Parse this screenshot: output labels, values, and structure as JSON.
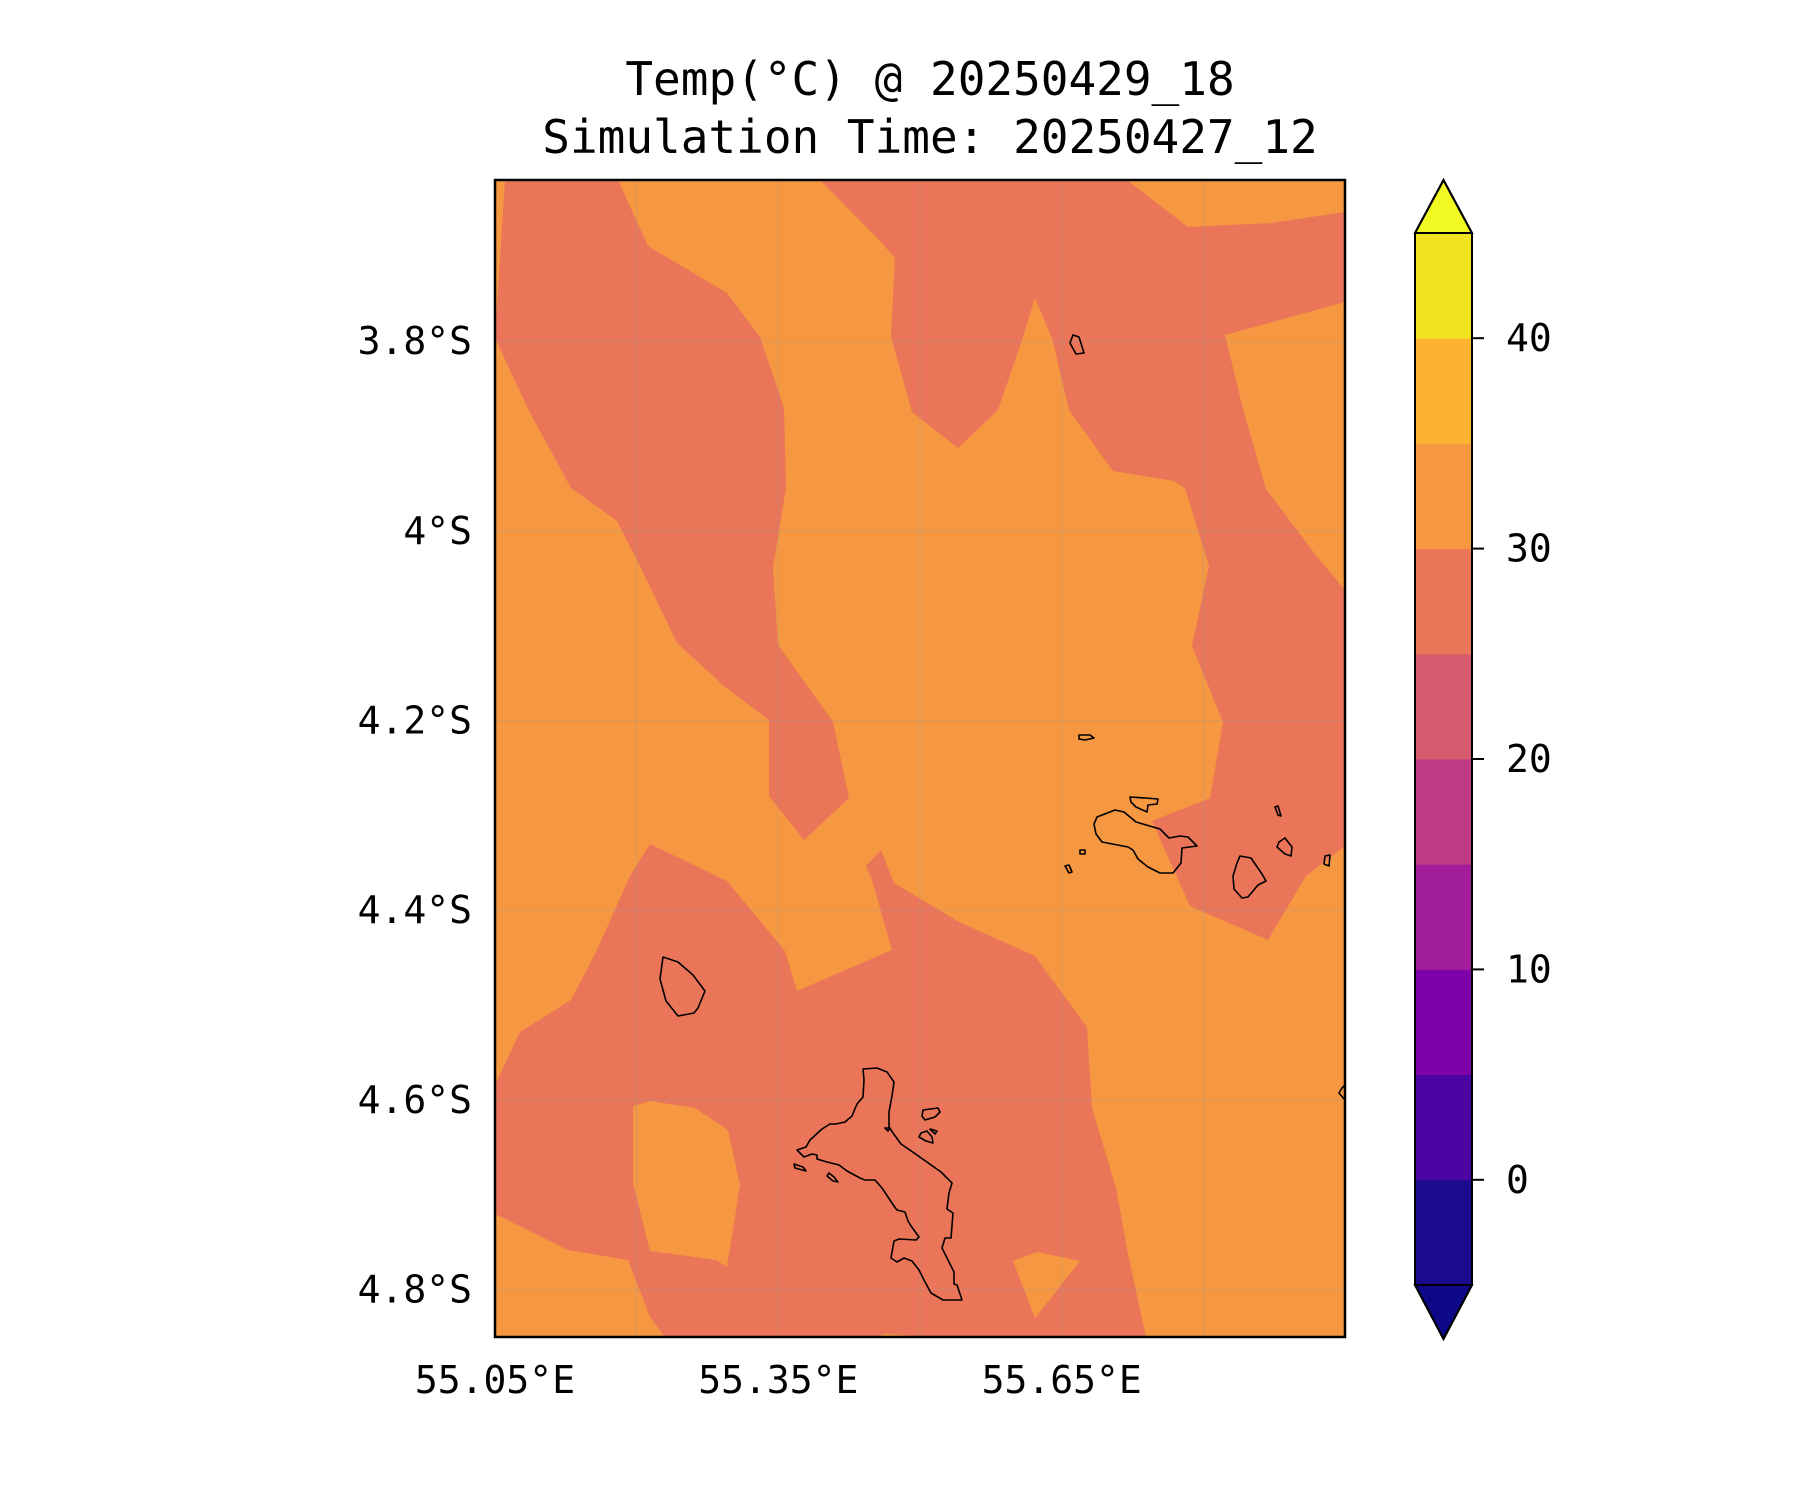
{
  "title": {
    "line1": "Temp(°C) @ 20250429_18",
    "line2": "Simulation Time: 20250427_12"
  },
  "map": {
    "lat_ticks": [
      "3.8°S",
      "4°S",
      "4.2°S",
      "4.4°S",
      "4.6°S",
      "4.8°S"
    ],
    "lon_ticks": [
      "55.05°E",
      "55.35°E",
      "55.65°E"
    ],
    "lat_values": [
      -3.8,
      -4.0,
      -4.2,
      -4.4,
      -4.6,
      -4.8
    ],
    "lon_values": [
      55.05,
      55.35,
      55.65
    ],
    "lon_range": [
      55.05,
      55.95
    ],
    "lat_range": [
      -3.63,
      -4.85
    ],
    "fill_colors": {
      "band_25_30": "#EB7558",
      "band_30_35": "#F69741"
    }
  },
  "colorbar": {
    "tick_labels": [
      "0",
      "10",
      "20",
      "30",
      "40"
    ],
    "tick_values": [
      0,
      10,
      20,
      30,
      40
    ],
    "range": [
      -5,
      45
    ],
    "extend": "both",
    "colors": [
      "#1A0A8E",
      "#4B03A1",
      "#7D02A8",
      "#A21D9A",
      "#C13A86",
      "#D85A6F",
      "#EB7558",
      "#F69741",
      "#FDB32F",
      "#F0E31F"
    ],
    "under_color": "#0D0887",
    "over_color": "#F0F921"
  }
}
